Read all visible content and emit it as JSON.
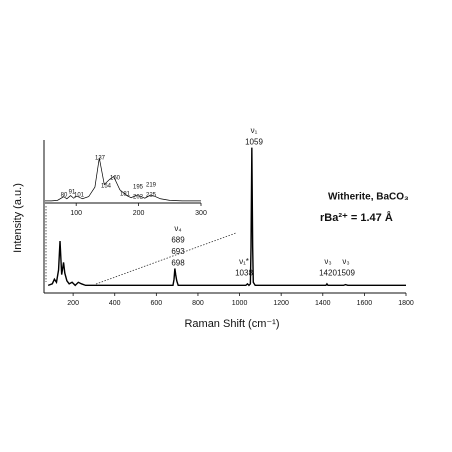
{
  "chart_data": [
    {
      "type": "line",
      "x_label": "Raman Shift (cm⁻¹)",
      "y_label": "Intensity (a.u.)",
      "xlim": [
        60,
        1800
      ],
      "xticks": [
        200,
        400,
        600,
        800,
        1000,
        1200,
        1400,
        1600,
        1800
      ],
      "ylim": [
        0,
        100
      ],
      "x": [
        80,
        100,
        110,
        120,
        130,
        137,
        145,
        154,
        160,
        170,
        181,
        195,
        210,
        225,
        240,
        260,
        300,
        400,
        500,
        600,
        650,
        680,
        685,
        689,
        693,
        698,
        705,
        720,
        800,
        900,
        1000,
        1030,
        1038,
        1045,
        1052,
        1055,
        1059,
        1063,
        1066,
        1075,
        1100,
        1200,
        1300,
        1400,
        1415,
        1420,
        1425,
        1440,
        1500,
        1509,
        1520,
        1600,
        1700,
        1800
      ],
      "values": [
        5,
        6,
        9,
        7,
        15,
        34,
        12,
        20,
        13,
        8,
        6,
        7,
        5,
        7,
        6,
        5,
        5,
        5,
        5,
        5,
        5,
        5,
        9,
        16,
        12,
        8,
        5,
        5,
        5,
        5,
        5,
        5,
        6,
        5,
        6,
        30,
        95,
        30,
        7,
        5,
        5,
        5,
        5,
        5,
        5,
        6,
        5,
        5,
        5,
        5.5,
        5,
        5,
        5,
        5
      ],
      "color": "#000000",
      "annotations": [
        [
          "ν₁",
          "1059"
        ],
        [
          "ν₁*",
          "1038"
        ],
        [
          "ν₄",
          "689",
          "693",
          "698"
        ],
        [
          "ν₃",
          "1420"
        ],
        [
          "ν₃",
          "1509"
        ]
      ],
      "texts": [
        "Witherite, BaCO₃",
        "rBa²⁺ = 1.47 Å"
      ]
    },
    {
      "type": "line",
      "xlim": [
        50,
        300
      ],
      "xticks": [
        100,
        200,
        300
      ],
      "ylim": [
        0,
        100
      ],
      "x": [
        50,
        60,
        70,
        80,
        85,
        91,
        96,
        101,
        110,
        120,
        130,
        137,
        145,
        154,
        160,
        170,
        181,
        188,
        195,
        202,
        210,
        219,
        225,
        235,
        250,
        270,
        300
      ],
      "values": [
        4,
        4,
        5,
        12,
        8,
        14,
        9,
        13,
        8,
        12,
        30,
        85,
        35,
        45,
        50,
        25,
        14,
        10,
        14,
        13,
        9,
        15,
        13,
        8,
        5,
        4,
        4
      ],
      "color": "#000000",
      "peak_labels": [
        "137",
        "160",
        "154",
        "80",
        "91",
        "101",
        "181",
        "195",
        "202",
        "219",
        "225"
      ]
    }
  ]
}
